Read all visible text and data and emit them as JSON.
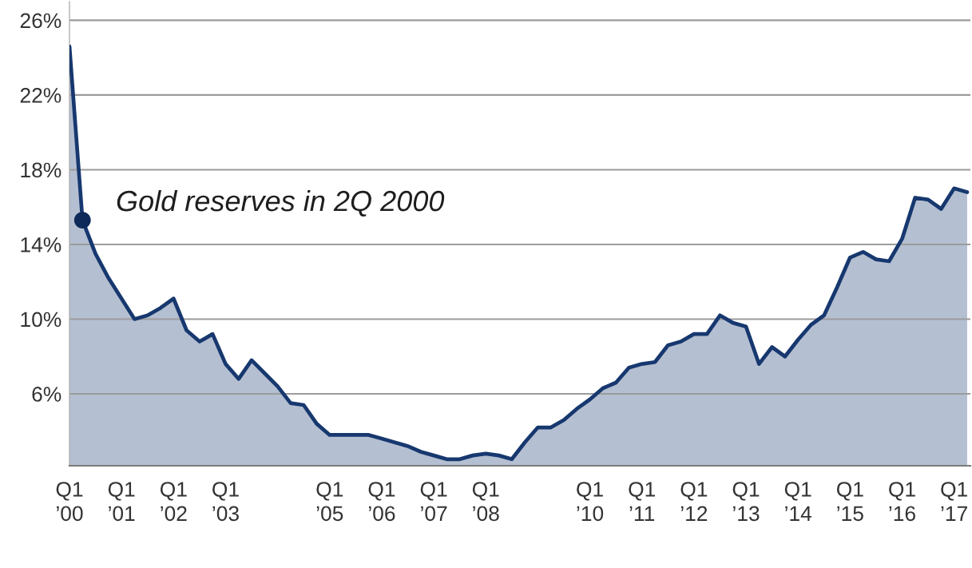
{
  "chart_data": {
    "type": "area",
    "categories": [
      "Q1\n’00",
      null,
      null,
      null,
      "Q1\n’01",
      null,
      null,
      null,
      "Q1\n’02",
      null,
      null,
      null,
      "Q1\n’03",
      null,
      null,
      null,
      null,
      null,
      null,
      null,
      "Q1\n’05",
      null,
      null,
      null,
      "Q1\n’06",
      null,
      null,
      null,
      "Q1\n’07",
      null,
      null,
      null,
      "Q1\n’08",
      null,
      null,
      null,
      null,
      null,
      null,
      null,
      "Q1\n’10",
      null,
      null,
      null,
      "Q1\n’11",
      null,
      null,
      null,
      "Q1\n’12",
      null,
      null,
      null,
      "Q1\n’13",
      null,
      null,
      null,
      "Q1\n’14",
      null,
      null,
      null,
      "Q1\n’15",
      null,
      null,
      null,
      "Q1\n’16",
      null,
      null,
      null,
      "Q1\n’17",
      null
    ],
    "series": [
      {
        "color": "#17386f",
        "values": [
          24.6,
          15.3,
          13.5,
          12.2,
          11.1,
          10.0,
          10.2,
          10.6,
          11.1,
          9.4,
          8.8,
          9.2,
          7.6,
          6.8,
          7.8,
          7.1,
          6.4,
          5.5,
          5.4,
          4.4,
          3.8,
          3.8,
          3.8,
          3.8,
          3.6,
          3.4,
          3.2,
          2.9,
          2.7,
          2.5,
          2.5,
          2.7,
          2.8,
          2.7,
          2.5,
          3.4,
          4.2,
          4.2,
          4.6,
          5.2,
          5.7,
          6.3,
          6.6,
          7.4,
          7.6,
          7.7,
          8.6,
          8.8,
          9.2,
          9.2,
          10.2,
          9.8,
          9.6,
          7.6,
          8.5,
          8.0,
          8.9,
          9.7,
          10.2,
          11.7,
          13.3,
          13.6,
          13.2,
          13.1,
          14.3,
          16.5,
          16.4,
          15.9,
          17.0,
          16.8
        ]
      },
      {
        "type": "scatter",
        "color": "#0e2a58",
        "marker": "circle",
        "values": [
          null,
          15.3,
          null,
          null,
          null,
          null,
          null,
          null,
          null,
          null,
          null,
          null,
          null,
          null,
          null,
          null,
          null,
          null,
          null,
          null,
          null,
          null,
          null,
          null,
          null,
          null,
          null,
          null,
          null,
          null,
          null,
          null,
          null,
          null,
          null,
          null,
          null,
          null,
          null,
          null,
          null,
          null,
          null,
          null,
          null,
          null,
          null,
          null,
          null,
          null,
          null,
          null,
          null,
          null,
          null,
          null,
          null,
          null,
          null,
          null,
          null,
          null,
          null,
          null,
          null,
          null,
          null,
          null,
          null,
          null
        ]
      }
    ],
    "annotations": [
      "Gold reserves in 2Q 2000"
    ],
    "ylim": [
      2.15,
      27.0
    ],
    "yticks": [
      {
        "value": 6,
        "label": "6%"
      },
      {
        "value": 10,
        "label": "10%"
      },
      {
        "value": 14,
        "label": "14%"
      },
      {
        "value": 18,
        "label": "18%"
      },
      {
        "value": 22,
        "label": "22%"
      },
      {
        "value": 26,
        "label": "26%"
      }
    ],
    "grid": "y"
  }
}
